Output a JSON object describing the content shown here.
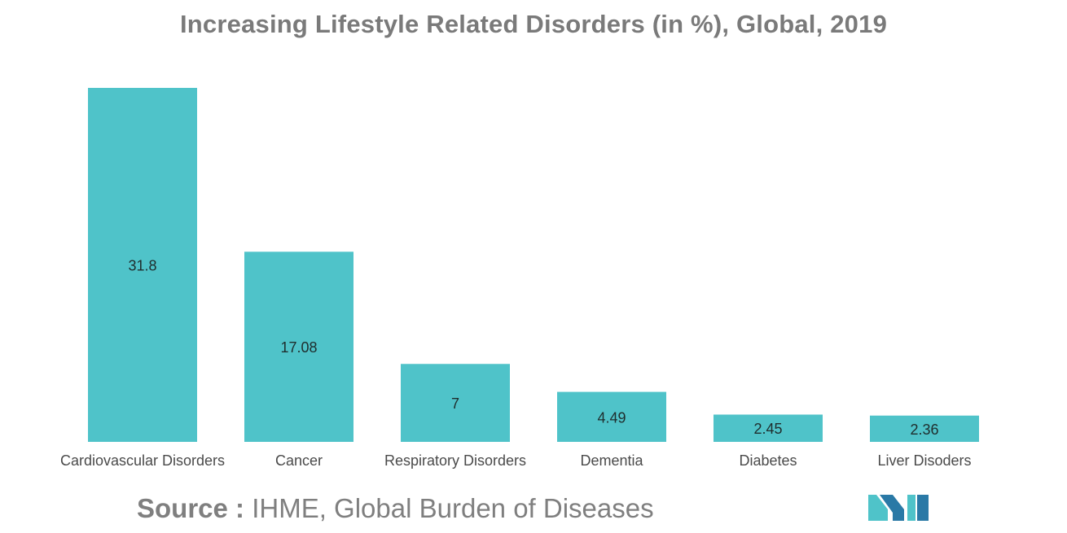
{
  "chart_data": {
    "type": "bar",
    "title": "Increasing Lifestyle Related Disorders (in %), Global, 2019",
    "categories": [
      "Cardiovascular Disorders",
      "Cancer",
      "Respiratory Disorders",
      "Dementia",
      "Diabetes",
      "Liver Disoders"
    ],
    "values": [
      31.8,
      17.08,
      7,
      4.49,
      2.45,
      2.36
    ],
    "value_labels": [
      "31.8",
      "17.08",
      "7",
      "4.49",
      "2.45",
      "2.36"
    ],
    "xlabel": "",
    "ylabel": "",
    "ylim": [
      0,
      31.8
    ],
    "grid": false,
    "legend": "none",
    "bar_color": "#4fc3c9"
  },
  "source": {
    "label": "Source :",
    "text": "IHME, Global Burden of Diseases"
  },
  "logo": {
    "icon": "mordor-intelligence-logo-icon",
    "colors": [
      "#4fc3c9",
      "#2a79a6"
    ]
  }
}
